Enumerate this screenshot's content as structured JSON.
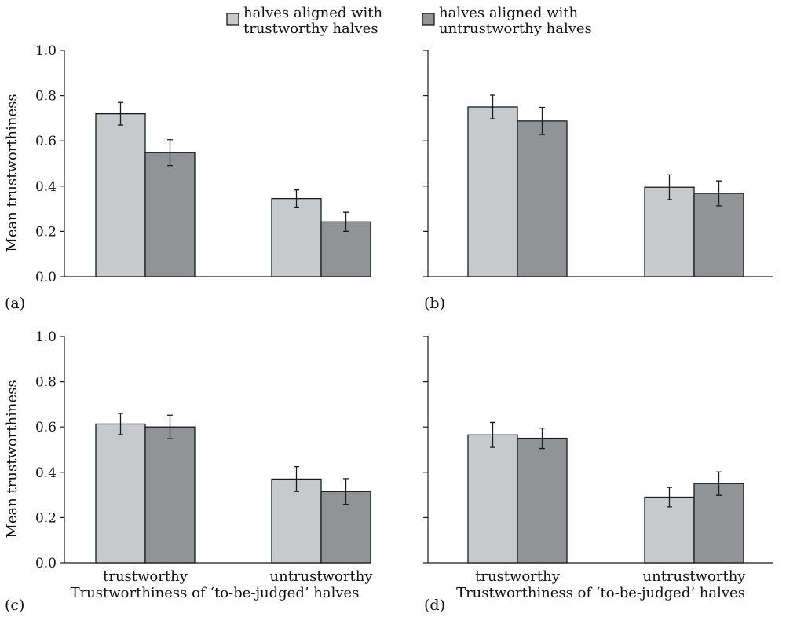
{
  "legend": [
    {
      "line1": "halves aligned with",
      "line2": "trustworthy halves",
      "color": "#c8c9cb"
    },
    {
      "line1": "halves aligned with",
      "line2": "untrustworthy halves",
      "color": "#929397"
    }
  ],
  "chart_data": [
    {
      "panel": "(a)",
      "type": "bar",
      "ylabel": "Mean trustworthiness",
      "xlabel": "",
      "categories": [
        "trustworthy",
        "untrustworthy"
      ],
      "show_category_labels": false,
      "ylim": [
        0,
        1.0
      ],
      "yticks": [
        "0.0",
        "0.2",
        "0.4",
        "0.6",
        "0.8",
        "1.0"
      ],
      "show_ytick_labels": true,
      "series": [
        {
          "values": [
            0.72,
            0.345
          ],
          "errors": [
            0.05,
            0.038
          ]
        },
        {
          "values": [
            0.548,
            0.242
          ],
          "errors": [
            0.057,
            0.042
          ]
        }
      ]
    },
    {
      "panel": "(b)",
      "type": "bar",
      "ylabel": "",
      "xlabel": "",
      "categories": [
        "trustworthy",
        "untrustworthy"
      ],
      "show_category_labels": false,
      "ylim": [
        0,
        1.0
      ],
      "yticks": [
        "0.0",
        "0.2",
        "0.4",
        "0.6",
        "0.8",
        "1.0"
      ],
      "show_ytick_labels": false,
      "series": [
        {
          "values": [
            0.75,
            0.395
          ],
          "errors": [
            0.052,
            0.055
          ]
        },
        {
          "values": [
            0.688,
            0.368
          ],
          "errors": [
            0.06,
            0.055
          ]
        }
      ]
    },
    {
      "panel": "(c)",
      "type": "bar",
      "ylabel": "Mean trustworthiness",
      "xlabel": "Trustworthiness of ‘to-be-judged’ halves",
      "categories": [
        "trustworthy",
        "untrustworthy"
      ],
      "show_category_labels": true,
      "ylim": [
        0,
        1.0
      ],
      "yticks": [
        "0.0",
        "0.2",
        "0.4",
        "0.6",
        "0.8",
        "1.0"
      ],
      "show_ytick_labels": true,
      "series": [
        {
          "values": [
            0.613,
            0.37
          ],
          "errors": [
            0.047,
            0.055
          ]
        },
        {
          "values": [
            0.6,
            0.315
          ],
          "errors": [
            0.052,
            0.057
          ]
        }
      ]
    },
    {
      "panel": "(d)",
      "type": "bar",
      "ylabel": "",
      "xlabel": "Trustworthiness of ‘to-be-judged’ halves",
      "categories": [
        "trustworthy",
        "untrustworthy"
      ],
      "show_category_labels": true,
      "ylim": [
        0,
        1.0
      ],
      "yticks": [
        "0.0",
        "0.2",
        "0.4",
        "0.6",
        "0.8",
        "1.0"
      ],
      "show_ytick_labels": false,
      "series": [
        {
          "values": [
            0.565,
            0.29
          ],
          "errors": [
            0.055,
            0.043
          ]
        },
        {
          "values": [
            0.55,
            0.35
          ],
          "errors": [
            0.045,
            0.052
          ]
        }
      ]
    }
  ]
}
